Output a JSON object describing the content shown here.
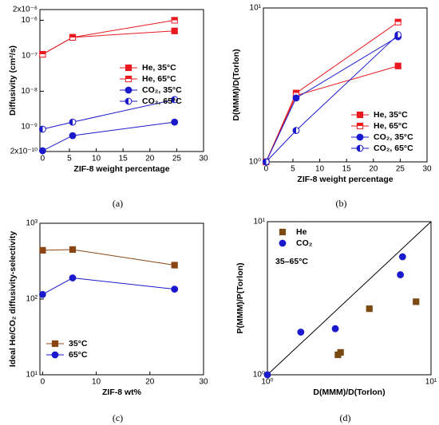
{
  "chart_data": [
    {
      "type": "line",
      "caption": "(a)",
      "x_label": "ZIF-8 weight percentage",
      "y_label": "Diffusivity (cm²/s)",
      "xlim": [
        -0.5,
        30
      ],
      "xticks": [
        0,
        5,
        10,
        15,
        20,
        25,
        30
      ],
      "log_y": true,
      "ylim": [
        2e-10,
        2e-06
      ],
      "yticks": [
        {
          "value": 2e-10,
          "label": "2x10⁻¹⁰"
        },
        {
          "value": 1e-09,
          "label": "10⁻⁹"
        },
        {
          "value": 1e-08,
          "label": "10⁻⁸"
        },
        {
          "value": 1e-07,
          "label": "10⁻⁷"
        },
        {
          "value": 1e-06,
          "label": "10⁻⁶"
        },
        {
          "value": 2e-06,
          "label": "2x10⁻⁶"
        }
      ],
      "legend": "center right",
      "series": [
        {
          "name": "He, 35°C",
          "color": "#e8191f",
          "marker": "square",
          "x": [
            0,
            5.6,
            24.6
          ],
          "values": [
            1.1e-07,
            3.3e-07,
            5e-07
          ]
        },
        {
          "name": "He, 65°C",
          "color": "#e8191f",
          "marker": "half-square",
          "x": [
            0,
            5.6,
            24.6
          ],
          "values": [
            1.1e-07,
            3.3e-07,
            1e-06
          ]
        },
        {
          "name": "CO₂, 35°C",
          "color": "#1a1acc",
          "marker": "circle",
          "x": [
            0,
            5.6,
            24.6
          ],
          "values": [
            2.1e-10,
            5.6e-10,
            1.35e-09
          ]
        },
        {
          "name": "CO₂, 65°C",
          "color": "#1a1acc",
          "marker": "half-circle",
          "x": [
            0,
            5.6,
            24.6
          ],
          "values": [
            8.5e-10,
            1.35e-09,
            5.8e-09
          ]
        }
      ]
    },
    {
      "type": "line",
      "caption": "(b)",
      "x_label": "ZIF-8 weight percentage",
      "y_label": "D(MMM)/D(Torlon)",
      "xlim": [
        -0.5,
        30
      ],
      "xticks": [
        0,
        5,
        10,
        15,
        20,
        25,
        30
      ],
      "log_y": true,
      "ylim": [
        1,
        10
      ],
      "yticks": [
        {
          "value": 1,
          "label": "10⁰"
        },
        {
          "value": 10,
          "label": "10¹"
        }
      ],
      "legend": "lower right",
      "series": [
        {
          "name": "He, 35°C",
          "color": "#e8191f",
          "marker": "square",
          "x": [
            0,
            5.6,
            24.6
          ],
          "values": [
            1,
            2.7,
            4.2
          ]
        },
        {
          "name": "He, 65°C",
          "color": "#e8191f",
          "marker": "half-square",
          "x": [
            0,
            5.6,
            24.6
          ],
          "values": [
            1,
            2.8,
            8.1
          ]
        },
        {
          "name": "CO₂, 35°C",
          "color": "#1a1acc",
          "marker": "circle",
          "x": [
            0,
            5.6,
            24.6
          ],
          "values": [
            1,
            2.6,
            6.5
          ]
        },
        {
          "name": "CO₂, 65°C",
          "color": "#1a1acc",
          "marker": "half-circle",
          "x": [
            0,
            5.6,
            24.6
          ],
          "values": [
            1,
            1.6,
            6.7
          ]
        }
      ]
    },
    {
      "type": "line",
      "caption": "(c)",
      "x_label": "ZIF-8 wt%",
      "y_label": "Ideal He/CO₂ diffusivity-selectivity",
      "xlim": [
        -0.5,
        30
      ],
      "xticks": [
        0,
        10,
        20,
        30
      ],
      "log_y": true,
      "ylim": [
        10,
        1000
      ],
      "yticks": [
        {
          "value": 10,
          "label": "10¹"
        },
        {
          "value": 100,
          "label": "10²"
        },
        {
          "value": 1000,
          "label": "10³"
        }
      ],
      "legend": "lower left",
      "series": [
        {
          "name": "35°C",
          "color": "#8b4513",
          "marker": "square",
          "x": [
            0,
            5.6,
            24.6
          ],
          "values": [
            440,
            450,
            280
          ]
        },
        {
          "name": "65°C",
          "color": "#1a1acc",
          "marker": "circle",
          "x": [
            0,
            5.6,
            24.6
          ],
          "values": [
            115,
            190,
            135
          ]
        }
      ]
    },
    {
      "type": "scatter",
      "caption": "(d)",
      "x_label": "D(MMM)/D(Torlon)",
      "y_label": "P(MMM)/P(Torlon)",
      "annotation": "35–65°C",
      "diagonal": true,
      "log_x": true,
      "log_y": true,
      "xlim": [
        1,
        10
      ],
      "xticks": [
        {
          "value": 1,
          "label": "10⁰"
        },
        {
          "value": 10,
          "label": "10¹"
        }
      ],
      "ylim": [
        1,
        10
      ],
      "yticks": [
        {
          "value": 1,
          "label": "10⁰"
        },
        {
          "value": 10,
          "label": "10¹"
        }
      ],
      "legend": "upper left",
      "series": [
        {
          "name": "He",
          "color": "#7a4a12",
          "marker": "square",
          "x": [
            2.7,
            2.8,
            4.2,
            8.1
          ],
          "values": [
            1.35,
            1.4,
            2.7,
            3.0
          ]
        },
        {
          "name": "CO₂",
          "color": "#1a1acc",
          "marker": "circle",
          "x": [
            1,
            1.6,
            2.6,
            6.5,
            6.7
          ],
          "values": [
            1,
            1.9,
            2.0,
            4.5,
            5.9
          ]
        }
      ]
    }
  ]
}
